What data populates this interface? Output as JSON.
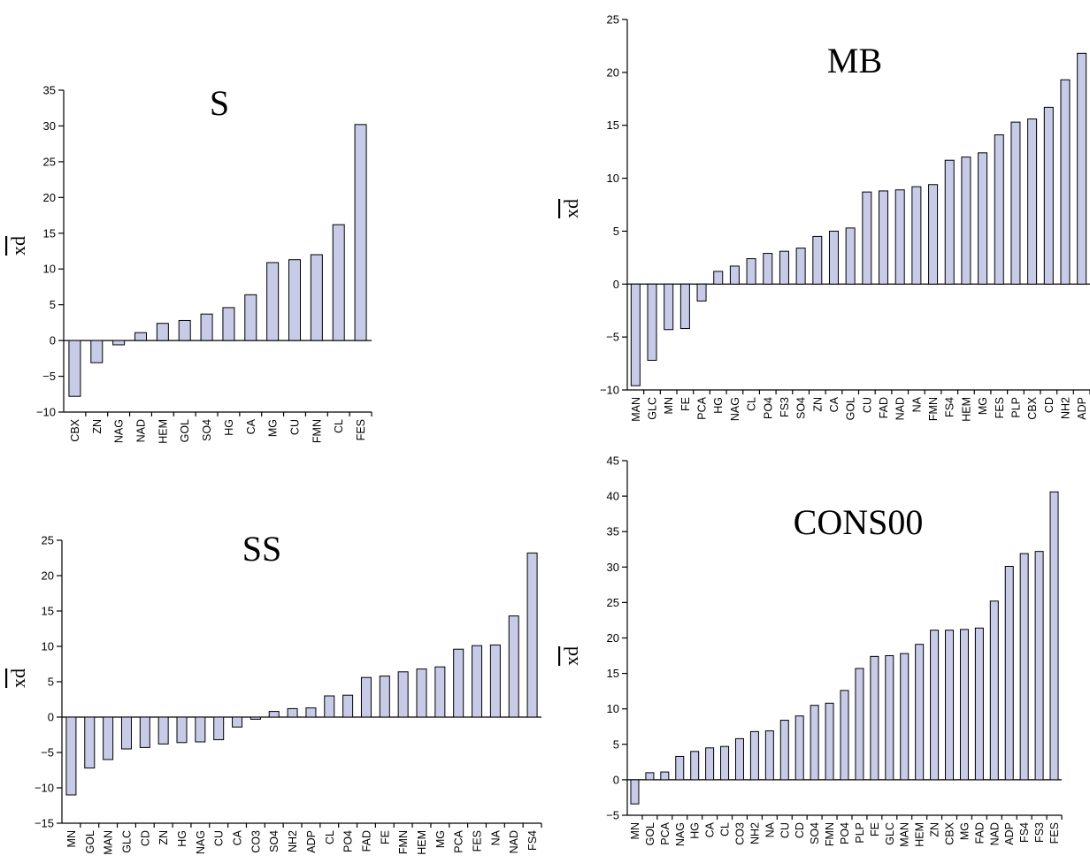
{
  "chart_data": [
    {
      "id": "S",
      "type": "bar",
      "title": "S",
      "ylabel": "xd",
      "ylim": [
        -10,
        35
      ],
      "yticks": [
        -10,
        -5,
        0,
        5,
        10,
        15,
        20,
        25,
        30,
        35
      ],
      "categories": [
        "CBX",
        "ZN",
        "NAG",
        "NAD",
        "HEM",
        "GOL",
        "SO4",
        "HG",
        "CA",
        "MG",
        "CU",
        "FMN",
        "CL",
        "FES"
      ],
      "values": [
        -7.8,
        -3.1,
        -0.6,
        1.1,
        2.4,
        2.8,
        3.7,
        4.6,
        6.4,
        10.9,
        11.3,
        12.0,
        16.2,
        30.2
      ]
    },
    {
      "id": "MB",
      "type": "bar",
      "title": "MB",
      "ylabel": "xd",
      "ylim": [
        -10,
        25
      ],
      "yticks": [
        -10,
        -5,
        0,
        5,
        10,
        15,
        20,
        25
      ],
      "categories": [
        "MAN",
        "GLC",
        "MN",
        "FE",
        "PCA",
        "HG",
        "NAG",
        "CL",
        "PO4",
        "FS3",
        "SO4",
        "ZN",
        "CA",
        "GOL",
        "CU",
        "FAD",
        "NAD",
        "NA",
        "FMN",
        "FS4",
        "HEM",
        "MG",
        "FES",
        "PLP",
        "CBX",
        "CD",
        "NH2",
        "ADP"
      ],
      "values": [
        -9.6,
        -7.2,
        -4.3,
        -4.2,
        -1.6,
        1.2,
        1.7,
        2.4,
        2.9,
        3.1,
        3.4,
        4.5,
        5.0,
        5.3,
        8.7,
        8.8,
        8.9,
        9.2,
        9.4,
        11.7,
        12.0,
        12.4,
        14.1,
        15.3,
        15.6,
        16.7,
        19.3,
        21.8
      ]
    },
    {
      "id": "SS",
      "type": "bar",
      "title": "SS",
      "ylabel": "xd",
      "ylim": [
        -15,
        25
      ],
      "yticks": [
        -15,
        -10,
        -5,
        0,
        5,
        10,
        15,
        20,
        25
      ],
      "categories": [
        "MN",
        "GOL",
        "MAN",
        "GLC",
        "CD",
        "ZN",
        "HG",
        "NAG",
        "CU",
        "CA",
        "CO3",
        "SO4",
        "NH2",
        "ADP",
        "CL",
        "PO4",
        "FAD",
        "FE",
        "FMN",
        "HEM",
        "MG",
        "PCA",
        "FES",
        "NA",
        "NAD",
        "FS4"
      ],
      "values": [
        -11.0,
        -7.2,
        -6.0,
        -4.5,
        -4.3,
        -3.8,
        -3.6,
        -3.5,
        -3.2,
        -1.4,
        -0.3,
        0.8,
        1.2,
        1.3,
        3.0,
        3.1,
        5.6,
        5.8,
        6.4,
        6.8,
        7.1,
        9.6,
        10.1,
        10.2,
        14.3,
        23.2
      ]
    },
    {
      "id": "CONS00",
      "type": "bar",
      "title": "CONS00",
      "ylabel": "xd",
      "ylim": [
        -5,
        45
      ],
      "yticks": [
        -5,
        0,
        5,
        10,
        15,
        20,
        25,
        30,
        35,
        40,
        45
      ],
      "categories": [
        "MN",
        "GOL",
        "PCA",
        "NAG",
        "HG",
        "CA",
        "CL",
        "CO3",
        "NH2",
        "NA",
        "CU",
        "CD",
        "SO4",
        "FMN",
        "PO4",
        "PLP",
        "FE",
        "GLC",
        "MAN",
        "HEM",
        "ZN",
        "CBX",
        "MG",
        "FAD",
        "NAD",
        "ADP",
        "FS4",
        "FS3",
        "FES"
      ],
      "values": [
        -3.4,
        1.0,
        1.1,
        3.3,
        4.0,
        4.5,
        4.7,
        5.8,
        6.8,
        6.9,
        8.4,
        9.0,
        10.5,
        10.8,
        12.6,
        15.7,
        17.4,
        17.5,
        17.8,
        19.1,
        21.1,
        21.1,
        21.2,
        21.4,
        25.2,
        30.1,
        31.9,
        32.2,
        40.6
      ]
    }
  ]
}
